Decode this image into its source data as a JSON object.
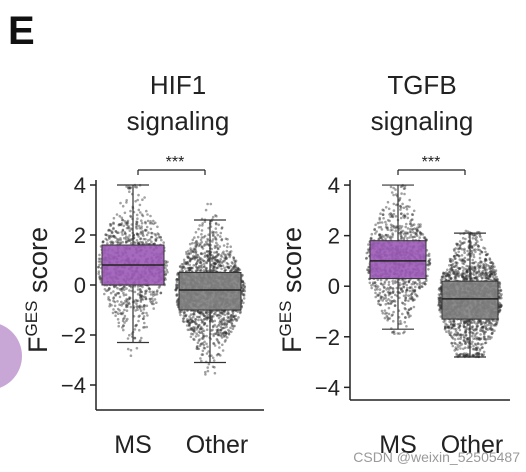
{
  "panel_letter": "E",
  "watermark": "CSDN @weixin_52505487",
  "colors": {
    "ms_box": "#9b59b6",
    "other_box": "#7f7f7f",
    "points": "#303030",
    "axis": "#222222",
    "decor_circle": "#c8a6d6"
  },
  "chart_data": [
    {
      "type": "box",
      "title_lines": [
        "HIF1",
        "signaling"
      ],
      "ylabel_main": "F",
      "ylabel_sup": "GES",
      "ylabel_rest": " score",
      "ylim": [
        -5,
        4.2
      ],
      "yticks": [
        4,
        2,
        0,
        -2,
        -4
      ],
      "categories": [
        "MS",
        "Other"
      ],
      "significance": "***",
      "boxes": [
        {
          "name": "MS",
          "q1": 0.0,
          "median": 0.8,
          "q3": 1.6,
          "whisker_low": -2.3,
          "whisker_high": 4.0,
          "min": -3.5,
          "max": 4.0,
          "color": "#9b59b6",
          "n_points": 900
        },
        {
          "name": "Other",
          "q1": -1.0,
          "median": -0.2,
          "q3": 0.5,
          "whisker_low": -3.1,
          "whisker_high": 2.6,
          "min": -4.0,
          "max": 4.0,
          "color": "#7f7f7f",
          "n_points": 1600
        }
      ]
    },
    {
      "type": "box",
      "title_lines": [
        "TGFB",
        "signaling"
      ],
      "ylabel_main": "F",
      "ylabel_sup": "GES",
      "ylabel_rest": " score",
      "ylim": [
        -4.5,
        4.2
      ],
      "yticks": [
        4,
        2,
        0,
        -2,
        -4
      ],
      "categories": [
        "MS",
        "Other"
      ],
      "significance": "***",
      "boxes": [
        {
          "name": "MS",
          "q1": 0.3,
          "median": 1.0,
          "q3": 1.8,
          "whisker_low": -1.7,
          "whisker_high": 4.0,
          "min": -1.9,
          "max": 4.0,
          "color": "#9b59b6",
          "n_points": 900
        },
        {
          "name": "Other",
          "q1": -1.3,
          "median": -0.5,
          "q3": 0.2,
          "whisker_low": -2.8,
          "whisker_high": 2.1,
          "min": -2.8,
          "max": 2.2,
          "color": "#7f7f7f",
          "n_points": 1600
        }
      ]
    }
  ]
}
